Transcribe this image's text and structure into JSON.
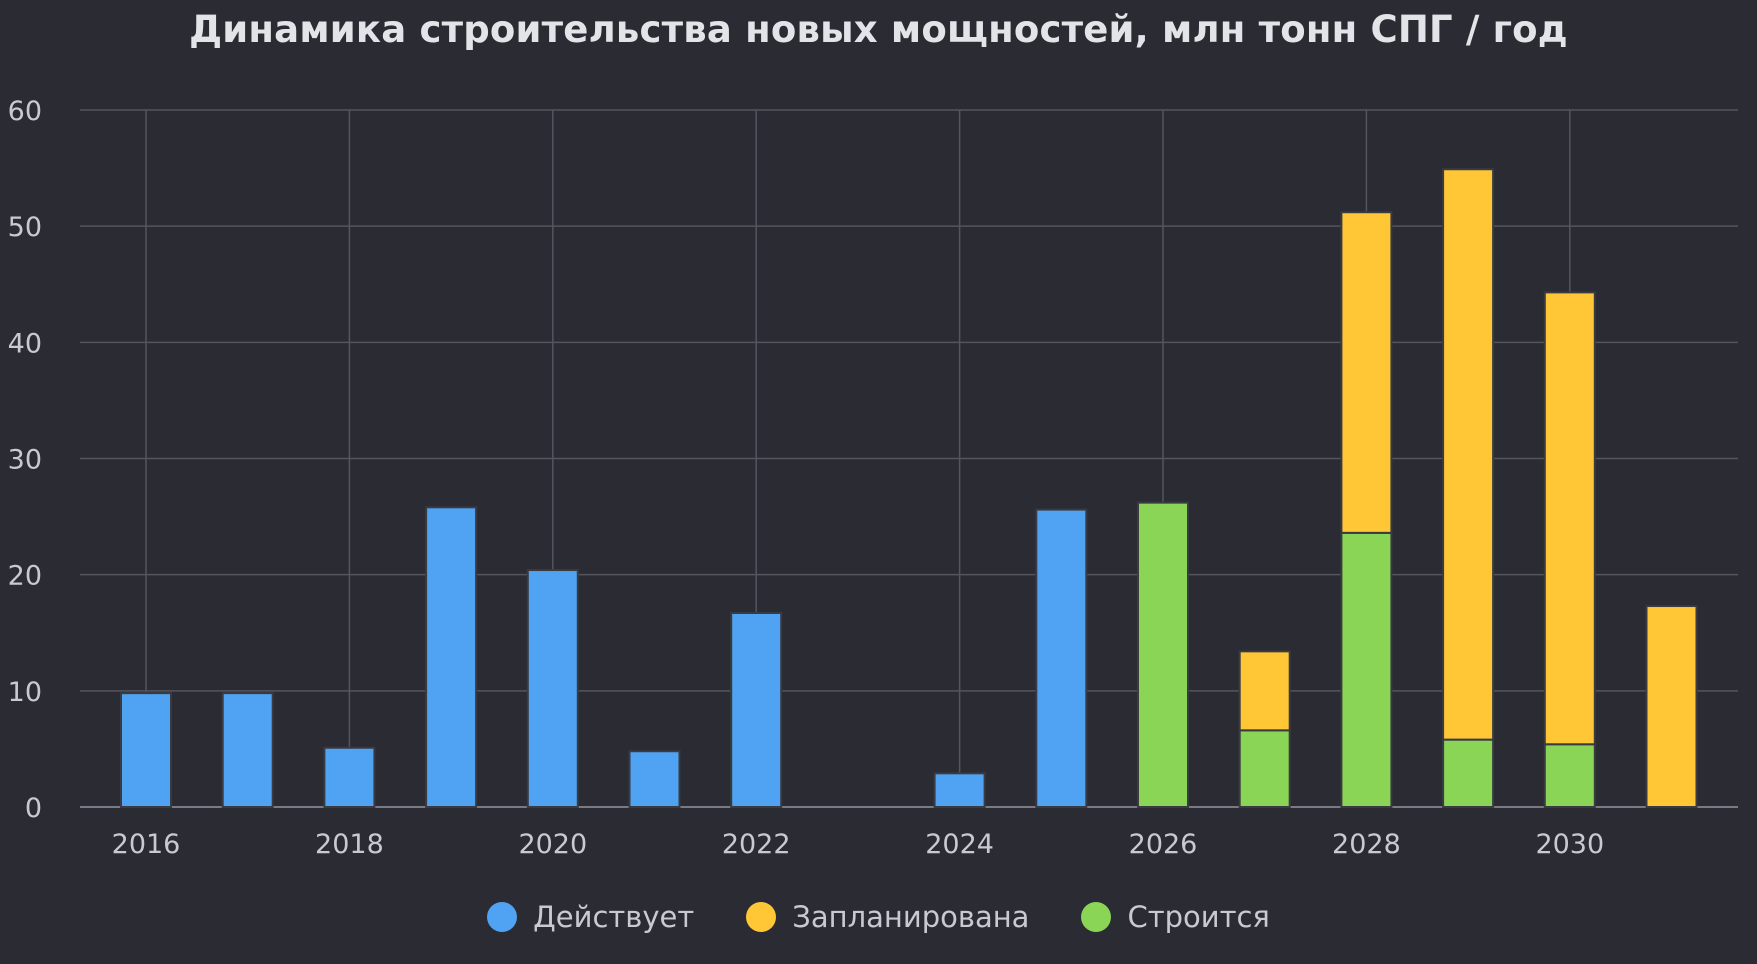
{
  "chart_data": {
    "type": "bar",
    "stacked": true,
    "title": "Динамика строительства новых мощностей, млн тонн СПГ / год",
    "xlabel": "",
    "ylabel": "",
    "categories": [
      "2016",
      "2017",
      "2018",
      "2019",
      "2020",
      "2021",
      "2022",
      "2023",
      "2024",
      "2025",
      "2026",
      "2027",
      "2028",
      "2029",
      "2030",
      "2031"
    ],
    "x_tick_labels": [
      "2016",
      "2018",
      "2020",
      "2022",
      "2024",
      "2026",
      "2028",
      "2030"
    ],
    "y_ticks": [
      0,
      10,
      20,
      30,
      40,
      50,
      60
    ],
    "ylim": [
      0,
      60
    ],
    "grid": true,
    "legend_position": "bottom-center",
    "series": [
      {
        "name": "Действует",
        "color": "#4fa3f2",
        "values": [
          9.8,
          9.8,
          5.1,
          25.8,
          20.4,
          4.8,
          16.7,
          0,
          2.9,
          25.6,
          0,
          0,
          0,
          0,
          0,
          0
        ]
      },
      {
        "name": "Строится",
        "color": "#8ad556",
        "values": [
          0,
          0,
          0,
          0,
          0,
          0,
          0,
          0,
          0,
          0,
          26.2,
          6.6,
          23.6,
          5.8,
          5.4,
          0
        ]
      },
      {
        "name": "Запланирована",
        "color": "#ffc636",
        "values": [
          0,
          0,
          0,
          0,
          0,
          0,
          0,
          0,
          0,
          0,
          0,
          6.8,
          27.6,
          49.1,
          38.9,
          17.3
        ]
      }
    ],
    "legend_order": [
      "Действует",
      "Запланирована",
      "Строится"
    ],
    "colors": {
      "background": "#2b2b33",
      "grid": "#55555e",
      "axis_text": "#c9c9cf",
      "bar_outline": "#3a3a42"
    }
  }
}
